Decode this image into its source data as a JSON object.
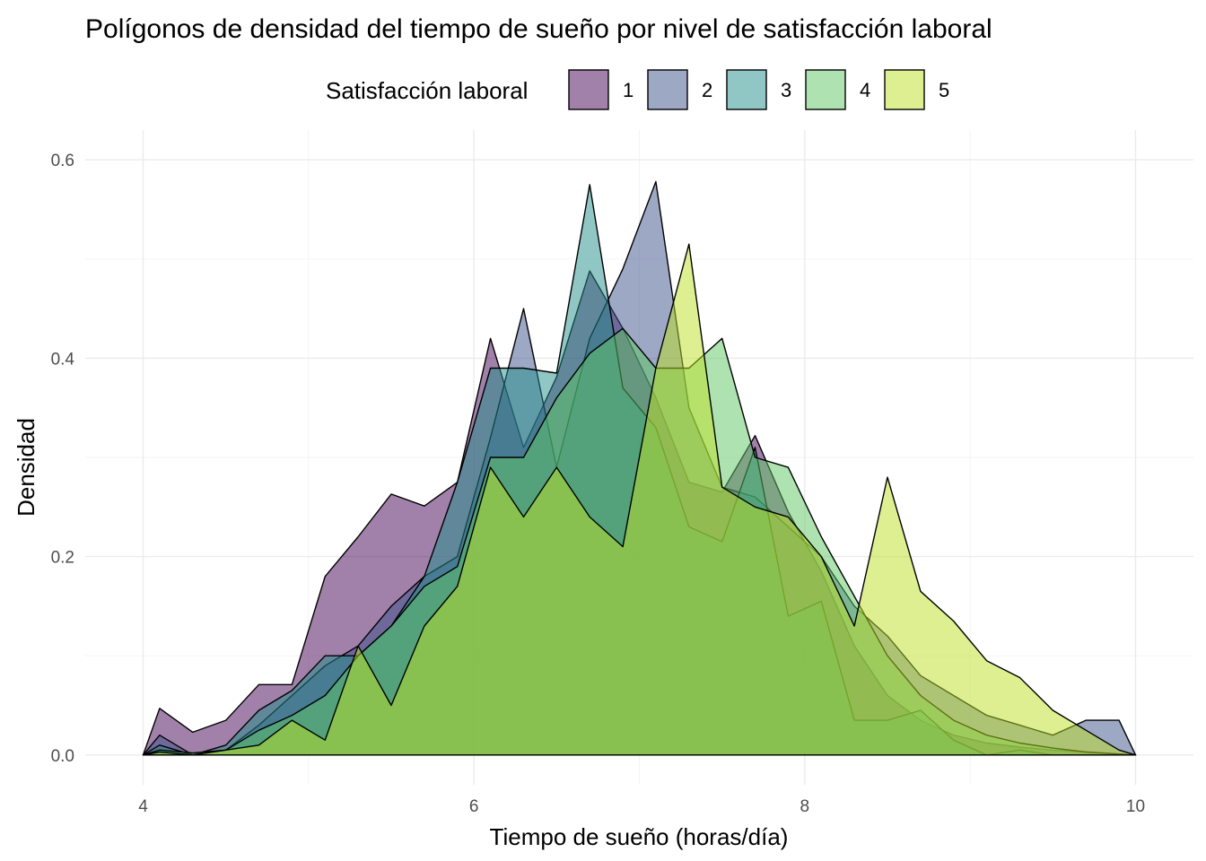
{
  "chart_data": {
    "type": "area",
    "title": "Polígonos de densidad del tiempo de sueño por nivel de satisfacción laboral",
    "xlabel": "Tiempo de sueño (horas/día)",
    "ylabel": "Densidad",
    "xlim": [
      3.65,
      10.35
    ],
    "ylim": [
      -0.03,
      0.63
    ],
    "x_ticks": [
      4,
      6,
      8,
      10
    ],
    "y_ticks": [
      0.0,
      0.2,
      0.4,
      0.6
    ],
    "x_tick_labels": [
      "4",
      "6",
      "8",
      "10"
    ],
    "y_tick_labels": [
      "0.0",
      "0.2",
      "0.4",
      "0.6"
    ],
    "grid": true,
    "legend": {
      "title": "Satisfacción laboral",
      "position": "top"
    },
    "fill_opacity": 0.5,
    "x": [
      4.0,
      4.1,
      4.3,
      4.5,
      4.7,
      4.9,
      5.1,
      5.3,
      5.5,
      5.7,
      5.9,
      6.1,
      6.3,
      6.5,
      6.7,
      6.9,
      7.1,
      7.3,
      7.5,
      7.7,
      7.9,
      8.1,
      8.3,
      8.5,
      8.7,
      8.9,
      9.1,
      9.3,
      9.5,
      9.7,
      9.9,
      10.0
    ],
    "series": [
      {
        "name": "1",
        "color": "#440154",
        "values": [
          0,
          0.047,
          0.023,
          0.035,
          0.071,
          0.071,
          0.18,
          0.22,
          0.263,
          0.251,
          0.275,
          0.42,
          0.31,
          0.381,
          0.488,
          0.43,
          0.36,
          0.275,
          0.265,
          0.322,
          0.245,
          0.185,
          0.11,
          0.06,
          0.035,
          0.02,
          0.012,
          0.008,
          0.005,
          0.003,
          0.001,
          0
        ]
      },
      {
        "name": "2",
        "color": "#3B528B",
        "values": [
          0,
          0.02,
          0.0,
          0.005,
          0.03,
          0.06,
          0.09,
          0.11,
          0.15,
          0.18,
          0.2,
          0.32,
          0.45,
          0.29,
          0.42,
          0.49,
          0.578,
          0.35,
          0.27,
          0.26,
          0.23,
          0.2,
          0.15,
          0.12,
          0.08,
          0.06,
          0.04,
          0.03,
          0.02,
          0.035,
          0.035,
          0
        ]
      },
      {
        "name": "3",
        "color": "#21908C",
        "values": [
          0,
          0.01,
          0.0,
          0.01,
          0.045,
          0.065,
          0.1,
          0.1,
          0.13,
          0.18,
          0.275,
          0.39,
          0.39,
          0.385,
          0.575,
          0.37,
          0.33,
          0.23,
          0.215,
          0.31,
          0.14,
          0.155,
          0.035,
          0.035,
          0.045,
          0.015,
          0.0,
          0.005,
          0.0,
          0.0,
          0.0,
          0
        ]
      },
      {
        "name": "4",
        "color": "#5DC863",
        "values": [
          0,
          0.005,
          0.002,
          0.005,
          0.025,
          0.04,
          0.06,
          0.1,
          0.13,
          0.17,
          0.19,
          0.3,
          0.3,
          0.36,
          0.405,
          0.43,
          0.39,
          0.39,
          0.42,
          0.3,
          0.29,
          0.22,
          0.16,
          0.1,
          0.06,
          0.035,
          0.02,
          0.012,
          0.007,
          0.003,
          0.001,
          0
        ]
      },
      {
        "name": "5",
        "color": "#BDDF26",
        "values": [
          0,
          0.003,
          0.0,
          0.005,
          0.01,
          0.035,
          0.015,
          0.11,
          0.05,
          0.13,
          0.17,
          0.29,
          0.24,
          0.29,
          0.24,
          0.21,
          0.39,
          0.515,
          0.27,
          0.25,
          0.24,
          0.2,
          0.13,
          0.28,
          0.165,
          0.135,
          0.095,
          0.078,
          0.045,
          0.025,
          0.005,
          0
        ]
      }
    ]
  }
}
